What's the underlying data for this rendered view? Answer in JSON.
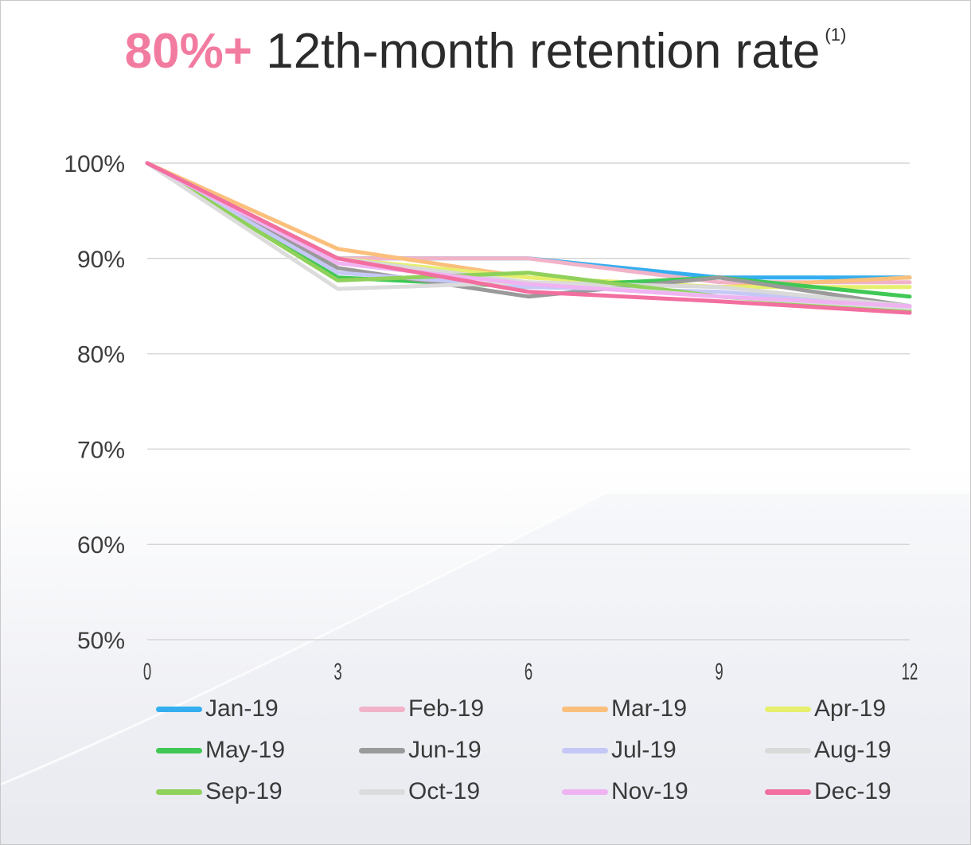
{
  "title": {
    "accent": "80%+",
    "main": "12th-month retention rate",
    "footnote": "(1)"
  },
  "chart_data": {
    "type": "line",
    "title": "80%+ 12th-month retention rate (1)",
    "xlabel": "",
    "ylabel": "",
    "x": [
      0,
      3,
      6,
      9,
      12
    ],
    "x_ticks": [
      "0",
      "3",
      "6",
      "9",
      "12"
    ],
    "ylim": [
      50,
      100
    ],
    "y_ticks": [
      "50%",
      "60%",
      "70%",
      "80%",
      "90%",
      "100%"
    ],
    "y_tick_values": [
      50,
      60,
      70,
      80,
      90,
      100
    ],
    "grid": true,
    "legend_position": "bottom",
    "series": [
      {
        "name": "Jan-19",
        "color": "#35aef0",
        "values": [
          100,
          90,
          90,
          88,
          88
        ]
      },
      {
        "name": "Feb-19",
        "color": "#f1b3c8",
        "values": [
          100,
          90,
          90,
          87.5,
          87.5
        ]
      },
      {
        "name": "Mar-19",
        "color": "#fbbf7c",
        "values": [
          100,
          91,
          88,
          87,
          88
        ]
      },
      {
        "name": "Apr-19",
        "color": "#e6ef6e",
        "values": [
          100,
          90,
          88,
          87,
          87
        ]
      },
      {
        "name": "May-19",
        "color": "#3fc855",
        "values": [
          100,
          88,
          87,
          88,
          86
        ]
      },
      {
        "name": "Jun-19",
        "color": "#9a9a9a",
        "values": [
          100,
          89,
          86,
          88,
          85
        ]
      },
      {
        "name": "Jul-19",
        "color": "#c5c8f6",
        "values": [
          100,
          88.5,
          87,
          86.5,
          85
        ]
      },
      {
        "name": "Aug-19",
        "color": "#d9d9d9",
        "values": [
          100,
          90,
          87.5,
          87,
          85
        ]
      },
      {
        "name": "Sep-19",
        "color": "#8fd15a",
        "values": [
          100,
          87.7,
          88.5,
          86,
          84.5
        ]
      },
      {
        "name": "Oct-19",
        "color": "#dcdcdc",
        "values": [
          100,
          86.8,
          87.5,
          86,
          84.8
        ]
      },
      {
        "name": "Nov-19",
        "color": "#efb3f2",
        "values": [
          100,
          89.5,
          87.3,
          86,
          85
        ]
      },
      {
        "name": "Dec-19",
        "color": "#f26fa0",
        "values": [
          100,
          90,
          86.5,
          85.5,
          84.3
        ]
      }
    ]
  }
}
